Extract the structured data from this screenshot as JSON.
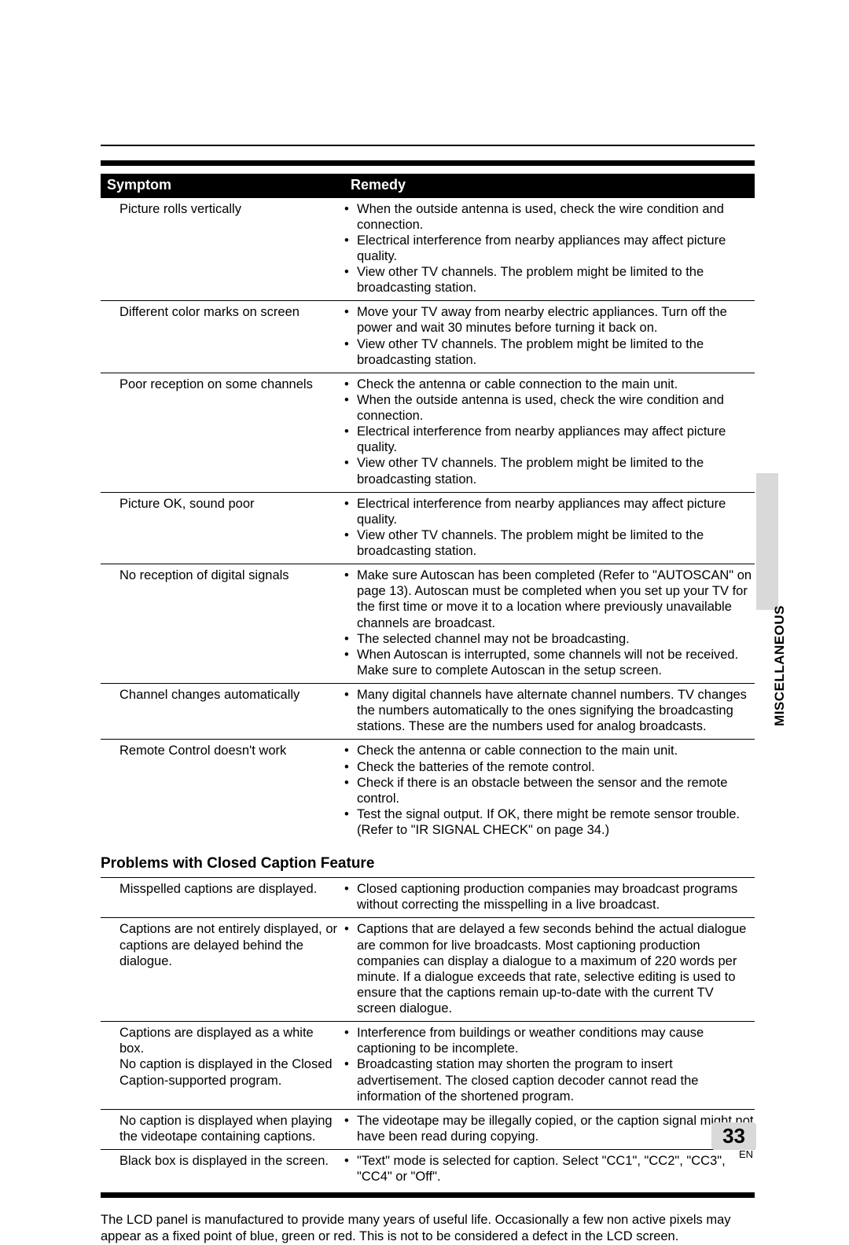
{
  "header": {
    "symptom": "Symptom",
    "remedy": "Remedy"
  },
  "rows": [
    {
      "symptom": "Picture rolls vertically",
      "remedies": [
        "When the outside antenna is used, check the wire condition and connection.",
        "Electrical interference from nearby appliances may affect picture quality.",
        "View other TV channels. The problem might be limited to the broadcasting station."
      ]
    },
    {
      "symptom": "Different color marks on screen",
      "remedies": [
        "Move your TV away from nearby electric appliances. Turn off the power and wait 30 minutes before turning it back on.",
        "View other TV channels. The problem might be limited to the broadcasting station."
      ]
    },
    {
      "symptom": "Poor reception on some channels",
      "remedies": [
        "Check the antenna or cable connection to the main unit.",
        "When the outside antenna is used, check the wire condition and connection.",
        "Electrical interference from nearby appliances may affect picture quality.",
        "View other TV channels. The problem might be limited to the broadcasting station."
      ]
    },
    {
      "symptom": "Picture OK, sound poor",
      "remedies": [
        "Electrical interference from nearby appliances may affect picture quality.",
        "View other TV channels. The problem might be limited to the broadcasting station."
      ]
    },
    {
      "symptom": "No reception of digital signals",
      "remedies": [
        "Make sure Autoscan has been completed (Refer to \"AUTOSCAN\" on page 13). Autoscan must be completed when you set up your TV for the first time or move it to a location where previously unavailable channels are broadcast.",
        "The selected channel may not be broadcasting.",
        "When Autoscan is interrupted, some channels will not be received. Make sure to complete Autoscan in the setup screen."
      ]
    },
    {
      "symptom": "Channel changes automatically",
      "remedies": [
        "Many digital channels have alternate channel numbers. TV changes the numbers automatically to the ones signifying the broadcasting stations. These are the numbers used for analog broadcasts."
      ]
    },
    {
      "symptom": "Remote Control doesn't work",
      "remedies": [
        "Check the antenna or cable connection to the main unit.",
        "Check the batteries of the remote control.",
        "Check if there is an obstacle between the sensor and the remote control.",
        "Test the signal output. If OK, there might be remote sensor trouble. (Refer to \"IR SIGNAL CHECK\" on page 34.)"
      ]
    }
  ],
  "cc_title": "Problems with Closed Caption Feature",
  "cc_rows": [
    {
      "symptom": "Misspelled captions are displayed.",
      "remedies": [
        "Closed captioning production companies may broadcast programs without correcting the misspelling in a live broadcast."
      ]
    },
    {
      "symptom": "Captions are not entirely displayed, or captions are delayed behind the dialogue.",
      "remedies": [
        "Captions that are delayed a few seconds behind the actual dialogue are common for live broadcasts. Most captioning production companies can display a dialogue to a maximum of 220 words per minute. If a dialogue exceeds that rate, selective editing is used to ensure that the captions remain up-to-date with the current TV screen dialogue."
      ]
    },
    {
      "symptom": "Captions are displayed as a white box.\nNo caption is displayed in the Closed Caption-supported program.",
      "remedies": [
        "Interference from buildings or weather conditions may cause captioning to be incomplete.",
        "Broadcasting station may shorten the program to insert advertisement. The closed caption decoder cannot read the information of the shortened program."
      ]
    },
    {
      "symptom": "No caption is displayed when playing the videotape containing captions.",
      "remedies": [
        "The videotape may be illegally copied, or the caption signal might not have been read during copying."
      ]
    },
    {
      "symptom": "Black box is displayed in the screen.",
      "remedies": [
        "\"Text\" mode is selected for caption. Select \"CC1\", \"CC2\", \"CC3\", \"CC4\" or \"Off\"."
      ]
    }
  ],
  "footnote": "The LCD panel is manufactured to provide many years of useful life. Occasionally a few non active pixels may appear as a fixed point of blue, green or red. This is not to be considered a defect in the LCD screen.",
  "side_label": "MISCELLANEOUS",
  "page_number": "33",
  "page_lang": "EN",
  "colors": {
    "bg": "#ffffff",
    "fg": "#000000",
    "tab": "#d9d9d9"
  }
}
